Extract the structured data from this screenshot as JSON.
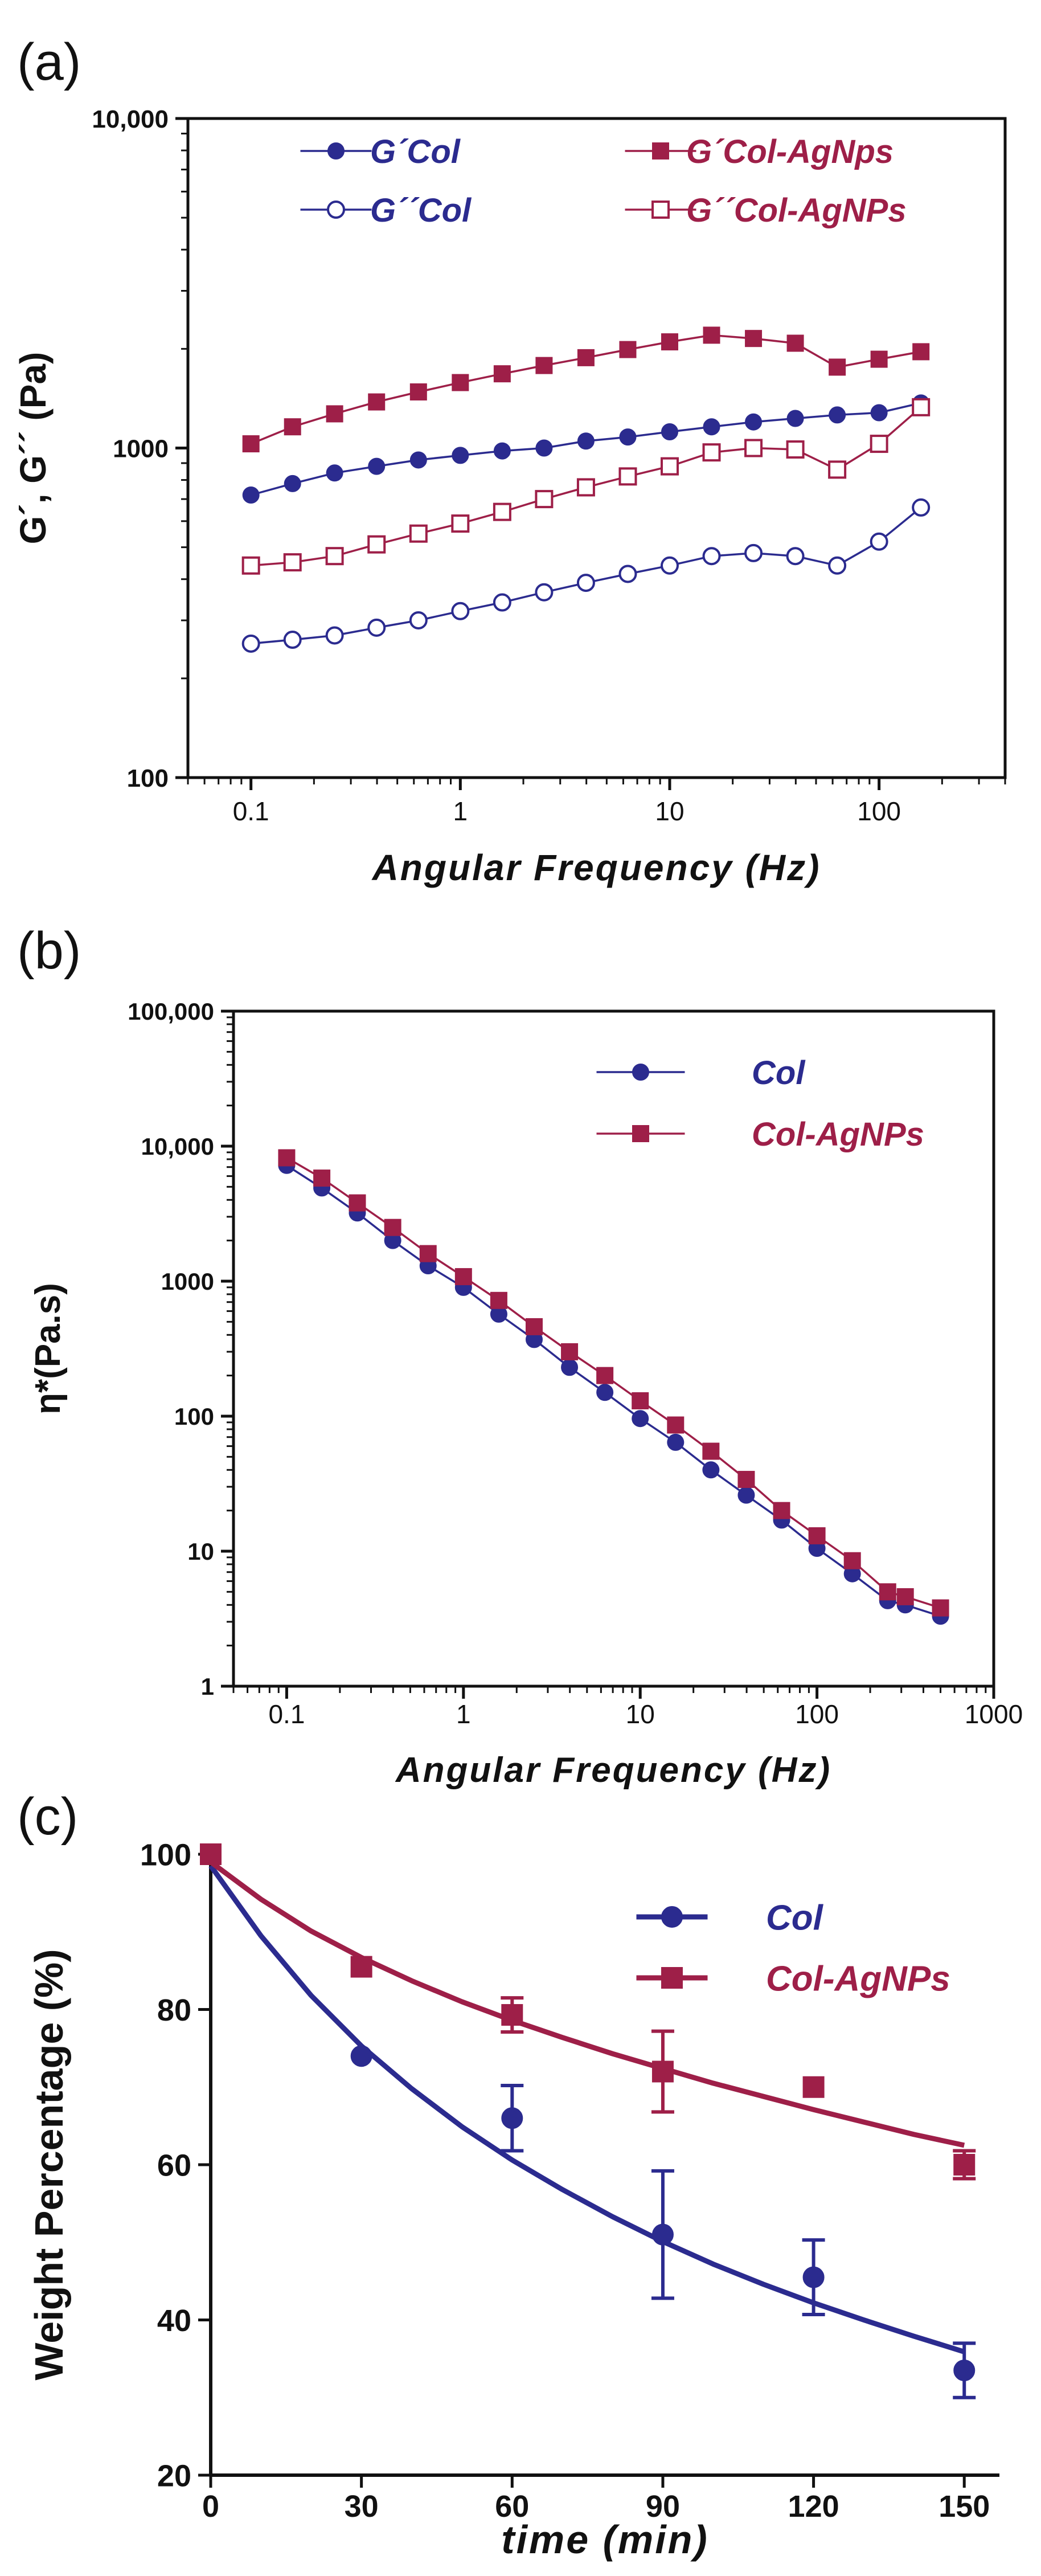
{
  "colors": {
    "blue": "#2b2b8f",
    "red": "#9e1f48",
    "axis": "#111111"
  },
  "chart_data": [
    {
      "panel_label": "(a)",
      "type": "line",
      "xlabel": "Angular Frequency (Hz)",
      "ylabel": "G´, G´´ (Pa)",
      "xscale": "log",
      "yscale": "log",
      "xlim": [
        0.05,
        400
      ],
      "ylim": [
        100,
        10000
      ],
      "x_ticks": [
        0.1,
        1,
        10,
        100
      ],
      "x_tick_labels": [
        "0.1",
        "1",
        "10",
        "100"
      ],
      "y_ticks": [
        100,
        1000,
        10000
      ],
      "y_tick_labels": [
        "100",
        "1000",
        "10,000"
      ],
      "legend_position": "top",
      "x": [
        0.1,
        0.158,
        0.251,
        0.398,
        0.631,
        1,
        1.585,
        2.512,
        3.981,
        6.31,
        10,
        15.85,
        25.12,
        39.81,
        63.1,
        100,
        158.5
      ],
      "series": [
        {
          "name": "G´Col",
          "color": "#2b2b8f",
          "marker": "circle-filled",
          "values": [
            720,
            780,
            840,
            880,
            920,
            950,
            980,
            1000,
            1050,
            1080,
            1120,
            1160,
            1200,
            1230,
            1260,
            1280,
            1370
          ]
        },
        {
          "name": "G´Col-AgNps",
          "color": "#9e1f48",
          "marker": "square-filled",
          "values": [
            1030,
            1160,
            1270,
            1380,
            1480,
            1580,
            1680,
            1780,
            1880,
            1990,
            2100,
            2200,
            2150,
            2080,
            1760,
            1860,
            1960
          ]
        },
        {
          "name": "G´´Col",
          "color": "#2b2b8f",
          "marker": "circle-open",
          "values": [
            255,
            262,
            270,
            285,
            300,
            320,
            340,
            365,
            390,
            415,
            440,
            470,
            480,
            470,
            440,
            520,
            660
          ]
        },
        {
          "name": "G´´Col-AgNPs",
          "color": "#9e1f48",
          "marker": "square-open",
          "values": [
            440,
            450,
            470,
            510,
            550,
            590,
            640,
            700,
            760,
            820,
            880,
            970,
            1000,
            990,
            860,
            1030,
            1330
          ]
        }
      ]
    },
    {
      "panel_label": "(b)",
      "type": "line",
      "xlabel": "Angular Frequency (Hz)",
      "ylabel": "η*(Pa.s)",
      "xscale": "log",
      "yscale": "log",
      "xlim": [
        0.05,
        1000
      ],
      "ylim": [
        1,
        100000
      ],
      "x_ticks": [
        0.1,
        1,
        10,
        100,
        1000
      ],
      "x_tick_labels": [
        "0.1",
        "1",
        "10",
        "100",
        "1000"
      ],
      "y_ticks": [
        1,
        10,
        100,
        1000,
        10000,
        100000
      ],
      "y_tick_labels": [
        "1",
        "10",
        "100",
        "1000",
        "10,000",
        "100,000"
      ],
      "legend_position": "top-right",
      "x": [
        0.1,
        0.158,
        0.251,
        0.398,
        0.631,
        1,
        1.585,
        2.512,
        3.981,
        6.31,
        10,
        15.85,
        25.12,
        39.81,
        63.1,
        100,
        158.5,
        251.2,
        316,
        500
      ],
      "series": [
        {
          "name": "Col",
          "color": "#2b2b8f",
          "marker": "circle-filled",
          "values": [
            7200,
            4900,
            3200,
            2000,
            1300,
            900,
            570,
            370,
            230,
            150,
            96,
            64,
            40,
            26,
            17,
            10.5,
            6.8,
            4.3,
            4.0,
            3.3
          ]
        },
        {
          "name": "Col-AgNPs",
          "color": "#9e1f48",
          "marker": "square-filled",
          "values": [
            8200,
            5800,
            3800,
            2500,
            1600,
            1080,
            720,
            460,
            300,
            200,
            130,
            86,
            55,
            34,
            20,
            13,
            8.5,
            5.0,
            4.6,
            3.8
          ]
        }
      ]
    },
    {
      "panel_label": "(c)",
      "type": "scatter",
      "xlabel": "time (min)",
      "ylabel": "Weight Percentage (%)",
      "xlim": [
        0,
        157
      ],
      "ylim": [
        20,
        100
      ],
      "x_ticks": [
        0,
        30,
        60,
        90,
        120,
        150
      ],
      "x_tick_labels": [
        "0",
        "30",
        "60",
        "90",
        "120",
        "150"
      ],
      "y_ticks": [
        20,
        40,
        60,
        80,
        100
      ],
      "y_tick_labels": [
        "20",
        "40",
        "60",
        "80",
        "100"
      ],
      "legend_position": "top-right",
      "x": [
        0,
        30,
        60,
        90,
        120,
        150
      ],
      "series": [
        {
          "name": "Col",
          "color": "#2b2b8f",
          "marker": "circle-filled",
          "values": [
            100,
            74,
            66,
            51,
            45.5,
            33.5
          ],
          "errors": [
            0,
            0,
            4.2,
            8.2,
            4.8,
            3.5
          ],
          "fit": {
            "x": [
              0,
              10,
              20,
              30,
              40,
              50,
              60,
              70,
              80,
              90,
              100,
              110,
              120,
              130,
              140,
              150
            ],
            "y": [
              98.5,
              89.5,
              81.8,
              75.3,
              69.8,
              64.9,
              60.6,
              56.8,
              53.3,
              50.1,
              47.2,
              44.6,
              42.2,
              40.0,
              37.9,
              35.9
            ]
          }
        },
        {
          "name": "Col-AgNPs",
          "color": "#9e1f48",
          "marker": "square-filled",
          "values": [
            100,
            85.5,
            79.3,
            72,
            70,
            60
          ],
          "errors": [
            0,
            0,
            2.2,
            5.2,
            0,
            1.8
          ],
          "fit": {
            "x": [
              0,
              10,
              20,
              30,
              40,
              50,
              60,
              70,
              80,
              90,
              100,
              110,
              120,
              130,
              140,
              150
            ],
            "y": [
              99.0,
              94.2,
              90.1,
              86.7,
              83.7,
              81.0,
              78.6,
              76.4,
              74.3,
              72.4,
              70.5,
              68.8,
              67.1,
              65.5,
              63.9,
              62.5
            ]
          }
        }
      ]
    }
  ]
}
